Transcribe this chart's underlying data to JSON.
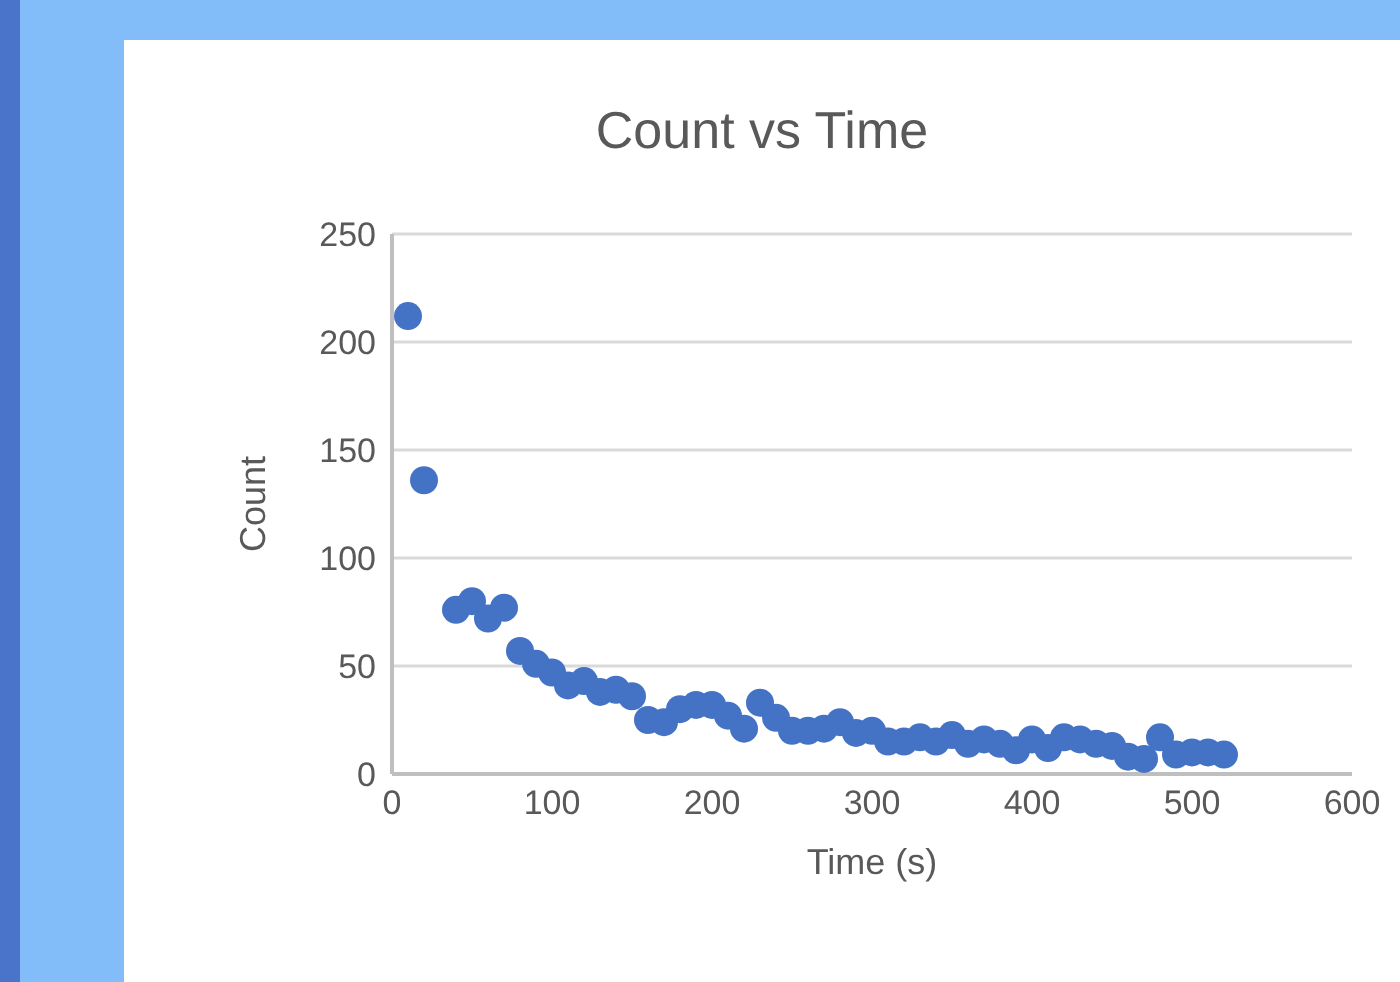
{
  "chart_data": {
    "type": "scatter",
    "title": "Count vs Time",
    "xlabel": "Time (s)",
    "ylabel": "Count",
    "x": [
      10,
      20,
      40,
      50,
      60,
      70,
      80,
      90,
      100,
      110,
      120,
      130,
      140,
      150,
      160,
      170,
      180,
      190,
      200,
      210,
      220,
      230,
      240,
      250,
      260,
      270,
      280,
      290,
      300,
      310,
      320,
      330,
      340,
      350,
      360,
      370,
      380,
      390,
      400,
      410,
      420,
      430,
      440,
      450,
      460,
      470,
      480,
      490,
      500,
      510,
      520
    ],
    "values": [
      212,
      136,
      76,
      80,
      72,
      77,
      57,
      51,
      47,
      41,
      43,
      38,
      39,
      36,
      25,
      24,
      30,
      32,
      32,
      27,
      21,
      33,
      26,
      20,
      20,
      21,
      24,
      19,
      20,
      15,
      15,
      17,
      15,
      18,
      14,
      16,
      14,
      11,
      16,
      12,
      17,
      16,
      14,
      13,
      8,
      7,
      17,
      9,
      10,
      10,
      9
    ],
    "color": "#4472c4",
    "marker": "circle",
    "xlim": [
      0,
      600
    ],
    "xticks": [
      0,
      100,
      200,
      300,
      400,
      500,
      600
    ],
    "ylim": [
      0,
      250
    ],
    "yticks": [
      0,
      50,
      100,
      150,
      200,
      250
    ],
    "grid": "y",
    "legend": false
  }
}
